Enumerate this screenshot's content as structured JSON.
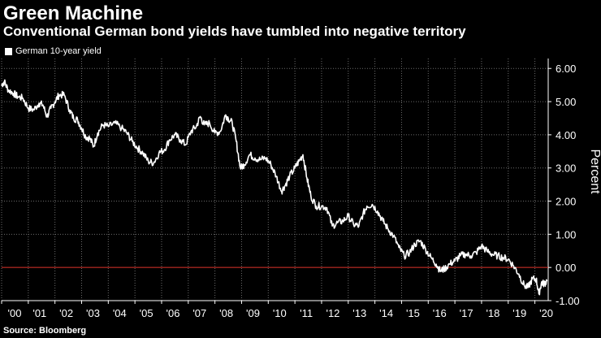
{
  "header": {
    "title": "Green Machine",
    "subtitle": "Conventional German bond yields have tumbled into negative territory"
  },
  "footer": {
    "source": "Source: Bloomberg"
  },
  "colors": {
    "background": "#000000",
    "line": "#ffffff",
    "zero_line": "#e0332b",
    "grid": "#6b6b6b",
    "text": "#ffffff"
  },
  "chart_data": {
    "type": "line",
    "title": "Green Machine",
    "subtitle": "Conventional German bond yields have tumbled into negative territory",
    "xlabel": "",
    "ylabel": "Percent",
    "xlim": [
      2000.0,
      2020.5
    ],
    "ylim": [
      -1.0,
      6.3
    ],
    "legend": "top-left",
    "grid": true,
    "x_tick_labels": [
      "'00",
      "'01",
      "'02",
      "'03",
      "'04",
      "'05",
      "'06",
      "'07",
      "'08",
      "'09",
      "'10",
      "'11",
      "'12",
      "'13",
      "'14",
      "'15",
      "'16",
      "'17",
      "'18",
      "'19",
      "'20"
    ],
    "x_tick_values": [
      2000,
      2001,
      2002,
      2003,
      2004,
      2005,
      2006,
      2007,
      2008,
      2009,
      2010,
      2011,
      2012,
      2013,
      2014,
      2015,
      2016,
      2017,
      2018,
      2019,
      2020
    ],
    "y_tick_labels": [
      "6.00",
      "5.00",
      "4.00",
      "3.00",
      "2.00",
      "1.00",
      "0.00",
      "-1.00"
    ],
    "y_tick_values": [
      6,
      5,
      4,
      3,
      2,
      1,
      0,
      -1
    ],
    "reference_line": 0,
    "series": [
      {
        "name": "German 10-year yield",
        "x": [
          2000.0,
          2000.1,
          2000.25,
          2000.45,
          2000.6,
          2000.8,
          2001.0,
          2001.2,
          2001.4,
          2001.55,
          2001.7,
          2001.85,
          2002.0,
          2002.15,
          2002.35,
          2002.55,
          2002.7,
          2002.85,
          2003.0,
          2003.15,
          2003.3,
          2003.45,
          2003.6,
          2003.8,
          2004.0,
          2004.25,
          2004.5,
          2004.7,
          2004.9,
          2005.1,
          2005.3,
          2005.5,
          2005.7,
          2005.9,
          2006.1,
          2006.3,
          2006.5,
          2006.7,
          2006.9,
          2007.1,
          2007.3,
          2007.45,
          2007.6,
          2007.8,
          2008.0,
          2008.2,
          2008.4,
          2008.5,
          2008.65,
          2008.8,
          2008.95,
          2009.1,
          2009.3,
          2009.5,
          2009.7,
          2009.9,
          2010.1,
          2010.3,
          2010.5,
          2010.65,
          2010.8,
          2011.0,
          2011.15,
          2011.3,
          2011.45,
          2011.6,
          2011.8,
          2012.0,
          2012.2,
          2012.4,
          2012.6,
          2012.8,
          2013.0,
          2013.2,
          2013.4,
          2013.55,
          2013.7,
          2013.9,
          2014.1,
          2014.3,
          2014.5,
          2014.7,
          2014.9,
          2015.1,
          2015.3,
          2015.5,
          2015.7,
          2015.9,
          2016.1,
          2016.3,
          2016.45,
          2016.6,
          2016.8,
          2017.0,
          2017.2,
          2017.4,
          2017.6,
          2017.8,
          2018.0,
          2018.2,
          2018.4,
          2018.6,
          2018.8,
          2019.0,
          2019.2,
          2019.4,
          2019.6,
          2019.75,
          2019.9,
          2020.05,
          2020.15,
          2020.25,
          2020.35,
          2020.45
        ],
        "y": [
          5.5,
          5.6,
          5.35,
          5.25,
          5.15,
          5.1,
          4.8,
          4.75,
          4.95,
          4.9,
          4.55,
          4.8,
          5.0,
          5.2,
          5.2,
          4.75,
          4.5,
          4.45,
          4.2,
          3.95,
          3.9,
          3.65,
          4.05,
          4.3,
          4.25,
          4.35,
          4.2,
          4.05,
          3.8,
          3.6,
          3.45,
          3.2,
          3.15,
          3.45,
          3.55,
          3.85,
          4.0,
          3.85,
          3.7,
          4.1,
          4.25,
          4.55,
          4.3,
          4.35,
          4.05,
          4.1,
          4.6,
          4.5,
          4.35,
          3.8,
          3.0,
          3.1,
          3.4,
          3.3,
          3.25,
          3.3,
          3.1,
          2.75,
          2.3,
          2.5,
          2.75,
          3.0,
          3.2,
          3.4,
          2.7,
          2.15,
          1.85,
          1.85,
          1.8,
          1.25,
          1.35,
          1.4,
          1.55,
          1.3,
          1.25,
          1.6,
          1.85,
          1.9,
          1.7,
          1.4,
          1.15,
          0.95,
          0.6,
          0.35,
          0.45,
          0.7,
          0.8,
          0.55,
          0.3,
          0.1,
          -0.1,
          -0.05,
          0.1,
          0.2,
          0.35,
          0.4,
          0.35,
          0.45,
          0.65,
          0.5,
          0.4,
          0.35,
          0.3,
          0.25,
          0.05,
          -0.2,
          -0.55,
          -0.6,
          -0.35,
          -0.35,
          -0.8,
          -0.45,
          -0.5,
          -0.4
        ]
      }
    ]
  }
}
